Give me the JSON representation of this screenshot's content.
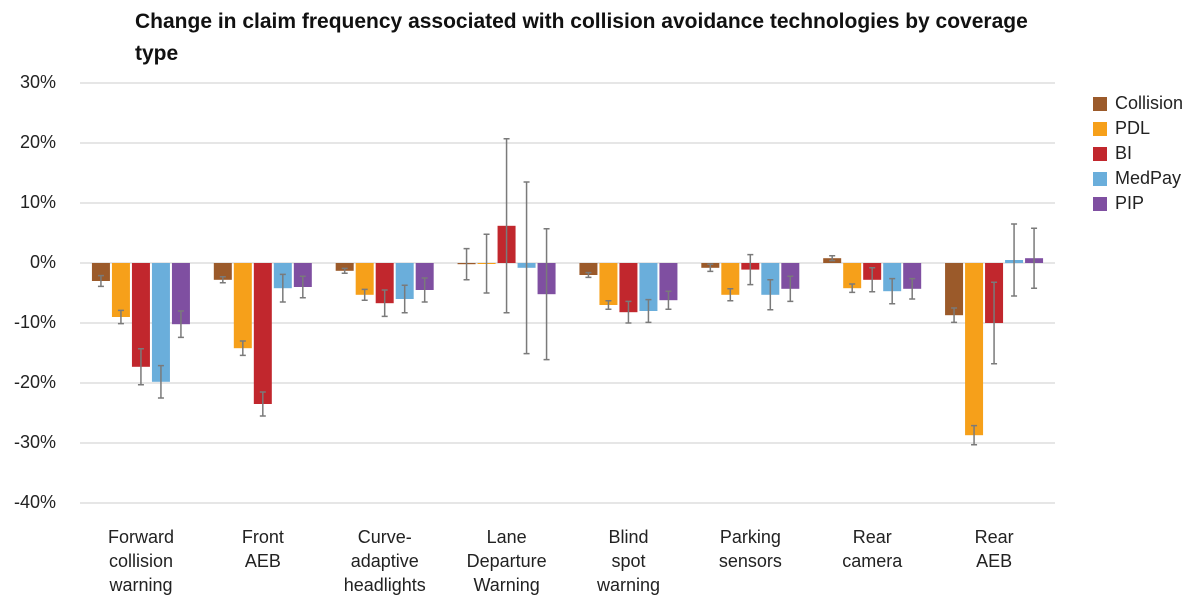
{
  "chart_data": {
    "type": "bar",
    "title": "Change in claim frequency associated with collision avoidance technologies by coverage type",
    "categories": [
      "Forward\ncollision\nwarning",
      "Front\nAEB",
      "Curve-adaptive\nheadlights",
      "Lane\nDeparture\nWarning",
      "Blind\nspot\nwarning",
      "Parking\nsensors",
      "Rear\ncamera",
      "Rear\nAEB"
    ],
    "series": [
      {
        "name": "Collision",
        "color": "#9b5a2a",
        "values": [
          -3.0,
          -2.8,
          -1.3,
          -0.2,
          -2.0,
          -0.8,
          0.8,
          -8.7
        ],
        "errors": [
          0.9,
          0.5,
          0.4,
          2.6,
          0.4,
          0.6,
          0.4,
          1.2
        ]
      },
      {
        "name": "PDL",
        "color": "#f6a01a",
        "values": [
          -9.0,
          -14.2,
          -5.3,
          -0.1,
          -7.0,
          -5.3,
          -4.2,
          -28.7
        ],
        "errors": [
          1.1,
          1.2,
          0.9,
          4.9,
          0.7,
          1.0,
          0.7,
          1.6
        ]
      },
      {
        "name": "BI",
        "color": "#c1272d",
        "values": [
          -17.3,
          -23.5,
          -6.7,
          6.2,
          -8.2,
          -1.1,
          -2.8,
          -10.0
        ],
        "errors": [
          3.0,
          2.0,
          2.2,
          14.5,
          1.8,
          2.5,
          2.0,
          6.8
        ]
      },
      {
        "name": "MedPay",
        "color": "#6aaedb",
        "values": [
          -19.8,
          -4.2,
          -6.0,
          -0.8,
          -8.0,
          -5.3,
          -4.7,
          0.5
        ],
        "errors": [
          2.7,
          2.3,
          2.3,
          14.3,
          1.9,
          2.5,
          2.1,
          6.0
        ]
      },
      {
        "name": "PIP",
        "color": "#7f4fa1",
        "values": [
          -10.2,
          -4.0,
          -4.5,
          -5.2,
          -6.2,
          -4.3,
          -4.3,
          0.8
        ],
        "errors": [
          2.2,
          1.8,
          2.0,
          10.9,
          1.5,
          2.1,
          1.7,
          5.0
        ]
      }
    ],
    "ylim": [
      -40,
      30
    ],
    "yticks": [
      {
        "value": -40,
        "label": "-40%"
      },
      {
        "value": -30,
        "label": "-30%"
      },
      {
        "value": -20,
        "label": "-20%"
      },
      {
        "value": -10,
        "label": "-10%"
      },
      {
        "value": 0,
        "label": "0%"
      },
      {
        "value": 10,
        "label": "10%"
      },
      {
        "value": 20,
        "label": "20%"
      },
      {
        "value": 30,
        "label": "30%"
      }
    ],
    "grid": true,
    "legend": "right",
    "error_color": "#7a7a7a"
  }
}
